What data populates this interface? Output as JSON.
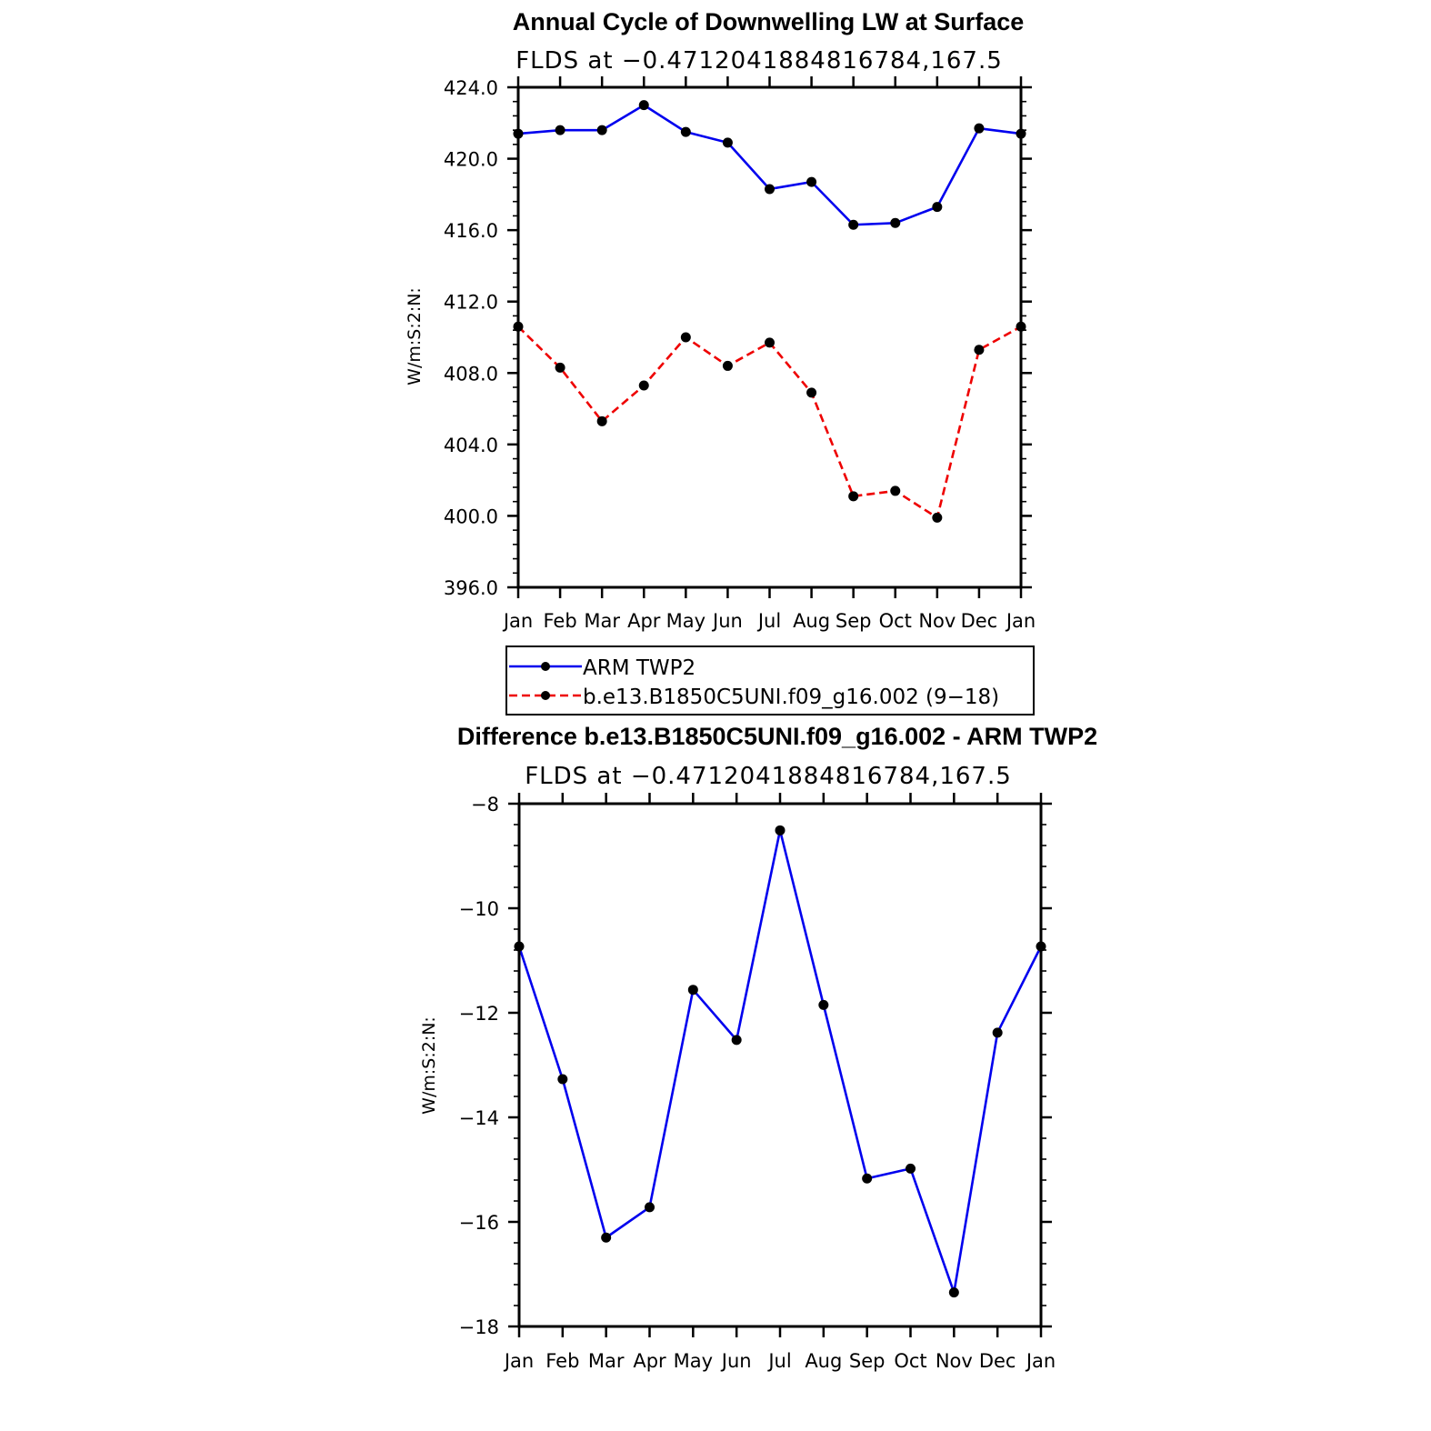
{
  "chart_data": [
    {
      "type": "line",
      "title": "Annual Cycle of Downwelling LW at Surface",
      "subtitle": "FLDS at −0.4712041884816784,167.5",
      "ylabel": "W/m:S:2:N:",
      "xlabel": "",
      "categories": [
        "Jan",
        "Feb",
        "Mar",
        "Apr",
        "May",
        "Jun",
        "Jul",
        "Aug",
        "Sep",
        "Oct",
        "Nov",
        "Dec",
        "Jan"
      ],
      "ylim": [
        396.0,
        424.0
      ],
      "yticks": [
        "396.0",
        "400.0",
        "404.0",
        "408.0",
        "412.0",
        "416.0",
        "420.0",
        "424.0"
      ],
      "ytick_values": [
        396,
        400,
        404,
        408,
        412,
        416,
        420,
        424
      ],
      "series": [
        {
          "name": "ARM TWP2",
          "color": "#0000ee",
          "dashed": false,
          "values": [
            421.4,
            421.6,
            421.6,
            423.0,
            421.5,
            420.9,
            418.3,
            418.7,
            416.3,
            416.4,
            417.3,
            421.7,
            421.4
          ]
        },
        {
          "name": "b.e13.B1850C5UNI.f09_g16.002 (9−18)",
          "color": "#ee0000",
          "dashed": true,
          "values": [
            410.6,
            408.3,
            405.3,
            407.3,
            410.0,
            408.4,
            409.7,
            406.9,
            401.1,
            401.4,
            399.9,
            409.3,
            410.6
          ]
        }
      ],
      "grid": false,
      "legend": "below"
    },
    {
      "type": "line",
      "title": "Difference b.e13.B1850C5UNI.f09_g16.002 - ARM TWP2",
      "subtitle": "FLDS at −0.4712041884816784,167.5",
      "ylabel": "W/m:S:2:N:",
      "xlabel": "",
      "categories": [
        "Jan",
        "Feb",
        "Mar",
        "Apr",
        "May",
        "Jun",
        "Jul",
        "Aug",
        "Sep",
        "Oct",
        "Nov",
        "Dec",
        "Jan"
      ],
      "ylim": [
        -18,
        -8
      ],
      "yticks": [
        "−18",
        "−16",
        "−14",
        "−12",
        "−10",
        "−8"
      ],
      "ytick_values": [
        -18,
        -16,
        -14,
        -12,
        -10,
        -8
      ],
      "series": [
        {
          "color": "#0000ee",
          "dashed": false,
          "values": [
            -10.73,
            -13.27,
            -16.3,
            -15.72,
            -11.56,
            -12.52,
            -8.51,
            -11.85,
            -15.17,
            -14.98,
            -17.35,
            -12.38,
            -10.73
          ]
        }
      ],
      "grid": false
    }
  ]
}
